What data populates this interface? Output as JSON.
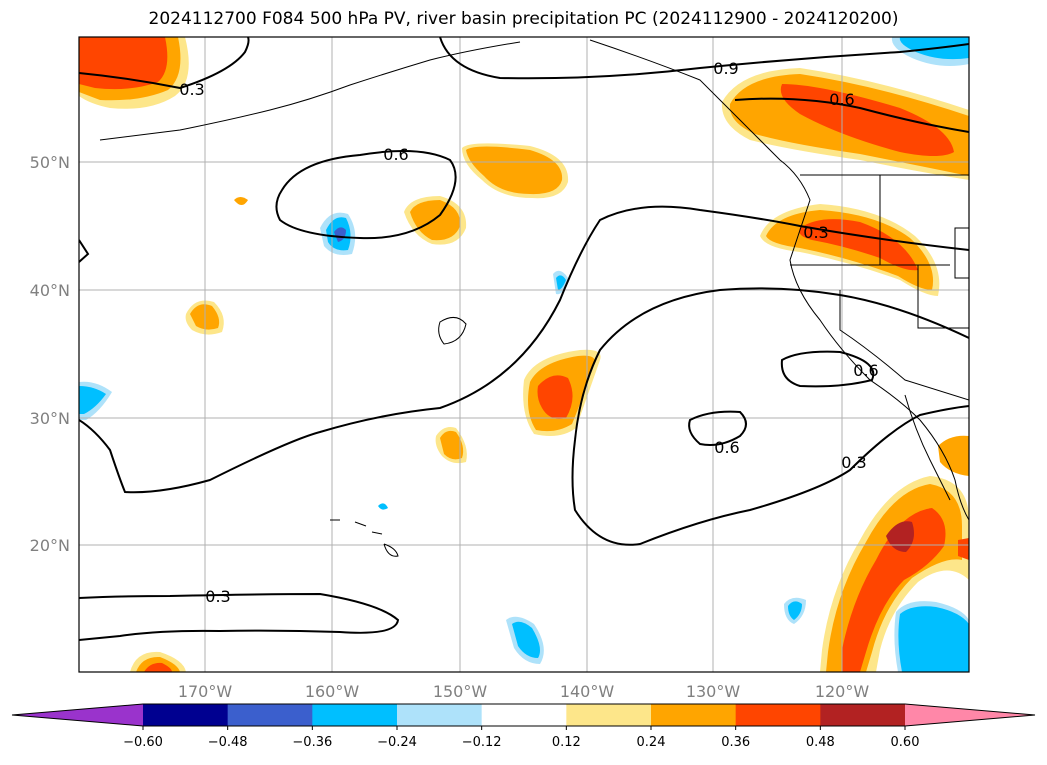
{
  "title": "2024112700 F084 500 hPa PV, river basin precipitation PC (2024112900 - 2024120200)",
  "lat_labels": [
    "50°N",
    "40°N",
    "30°N",
    "20°N"
  ],
  "lon_labels": [
    "170°W",
    "160°W",
    "150°W",
    "140°W",
    "130°W",
    "120°W"
  ],
  "contour_labels": [
    "0.3",
    "0.6",
    "0.9",
    "0.6",
    "0.3",
    "0.6",
    "0.3",
    "0.6",
    "0.3"
  ],
  "colorbar": {
    "ticks": [
      "−0.60",
      "−0.48",
      "−0.36",
      "−0.24",
      "−0.12",
      "0.12",
      "0.24",
      "0.36",
      "0.48",
      "0.60"
    ],
    "colors": [
      "#9a33cc",
      "#000090",
      "#3b5fcd",
      "#00bfff",
      "#aee2fa",
      "#ffffff",
      "#fde68a",
      "#ffa500",
      "#ff4500",
      "#b22222",
      "#ff87a8"
    ]
  }
}
